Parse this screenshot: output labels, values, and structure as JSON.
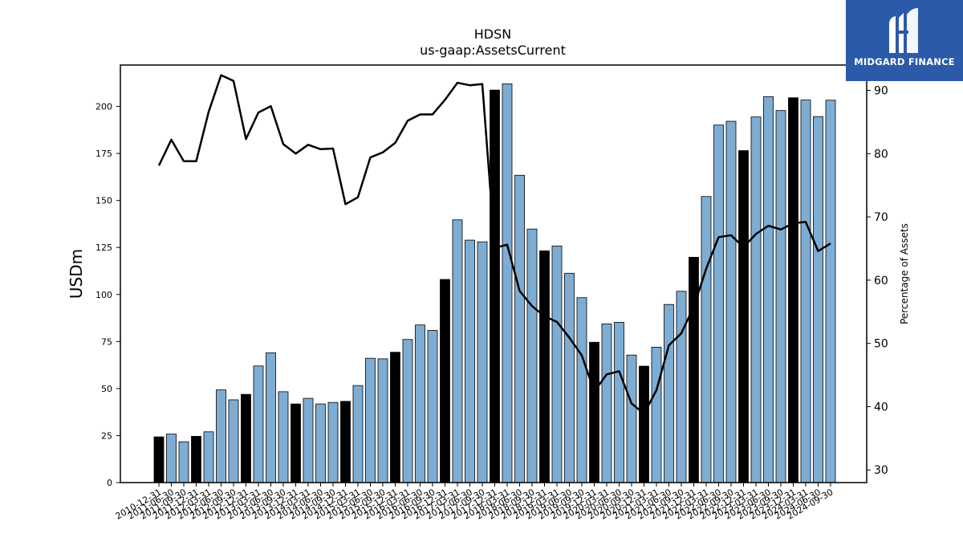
{
  "logo": {
    "text": "MIDGARD FINANCE",
    "icon": "midgard-logo-icon",
    "bg_color": "#2b5aa8"
  },
  "chart_data": {
    "type": "bar",
    "title": "HDSN",
    "subtitle": "us-gaap:AssetsCurrent",
    "ylabel": "USDm",
    "y2label": "Percentage of Assets",
    "ylim": [
      0,
      222
    ],
    "y2lim": [
      28,
      94
    ],
    "yticks": [
      0,
      25,
      50,
      75,
      100,
      125,
      150,
      175,
      200
    ],
    "y2ticks": [
      30,
      40,
      50,
      60,
      70,
      80,
      90
    ],
    "colors": {
      "annual": "#000000",
      "quarterly": "#7eadd4",
      "line": "#000000"
    },
    "categories": [
      "2010-12-31",
      "2011-06-30",
      "2011-09-30",
      "2011-12-31",
      "2012-03-31",
      "2012-06-30",
      "2012-09-30",
      "2012-12-31",
      "2013-03-31",
      "2013-06-30",
      "2013-09-30",
      "2013-12-31",
      "2014-03-31",
      "2014-06-30",
      "2014-09-30",
      "2014-12-31",
      "2015-03-31",
      "2015-06-30",
      "2015-09-30",
      "2015-12-31",
      "2016-03-31",
      "2016-06-30",
      "2016-09-30",
      "2016-12-31",
      "2017-03-31",
      "2017-06-30",
      "2017-09-30",
      "2017-12-31",
      "2018-03-31",
      "2018-06-30",
      "2018-09-30",
      "2018-12-31",
      "2019-03-31",
      "2019-06-30",
      "2019-09-30",
      "2019-12-31",
      "2020-03-31",
      "2020-06-30",
      "2020-09-30",
      "2020-12-31",
      "2021-03-31",
      "2021-06-30",
      "2021-09-30",
      "2021-12-31",
      "2022-03-31",
      "2022-06-30",
      "2022-09-30",
      "2022-12-31",
      "2023-03-31",
      "2023-06-30",
      "2023-09-30",
      "2023-12-31",
      "2024-03-31",
      "2024-06-30",
      "2024-09-30"
    ],
    "series": [
      {
        "values": [
          24.3,
          25.8,
          21.7,
          24.6,
          27.0,
          49.3,
          44.0,
          46.9,
          62.0,
          69.0,
          48.3,
          41.8,
          44.8,
          41.8,
          42.6,
          43.2,
          51.6,
          66.1,
          65.8,
          69.3,
          76.1,
          83.8,
          80.9,
          108.0,
          139.7,
          128.9,
          128.0,
          208.7,
          212.0,
          163.4,
          134.8,
          123.2,
          125.8,
          111.3,
          98.3,
          74.6,
          84.4,
          85.2,
          67.8,
          61.9,
          72.0,
          94.7,
          101.7,
          119.8,
          152.1,
          190.1,
          192.1,
          176.5,
          194.4,
          205.2,
          197.8,
          204.6,
          203.4,
          194.6,
          203.3
        ]
      },
      {
        "values": [
          78.1,
          82.2,
          78.8,
          78.8,
          86.6,
          92.4,
          91.5,
          82.3,
          86.5,
          87.5,
          81.5,
          80.0,
          81.4,
          80.7,
          80.8,
          72.0,
          73.1,
          79.4,
          80.2,
          81.7,
          85.2,
          86.2,
          86.2,
          88.5,
          91.2,
          90.8,
          91.0,
          65.1,
          65.6,
          58.3,
          55.9,
          54.3,
          53.4,
          50.9,
          48.1,
          42.4,
          45.1,
          45.6,
          40.5,
          38.9,
          42.6,
          49.7,
          51.6,
          55.8,
          61.8,
          66.8,
          67.1,
          65.2,
          67.3,
          68.6,
          68.0,
          69.0,
          69.2,
          64.6,
          65.8
        ]
      }
    ],
    "annual_flags": [
      1,
      0,
      0,
      1,
      0,
      0,
      0,
      1,
      0,
      0,
      0,
      1,
      0,
      0,
      0,
      1,
      0,
      0,
      0,
      1,
      0,
      0,
      0,
      1,
      0,
      0,
      0,
      1,
      0,
      0,
      0,
      1,
      0,
      0,
      0,
      1,
      0,
      0,
      0,
      1,
      0,
      0,
      0,
      1,
      0,
      0,
      0,
      1,
      0,
      0,
      0,
      1,
      0,
      0,
      0
    ]
  }
}
